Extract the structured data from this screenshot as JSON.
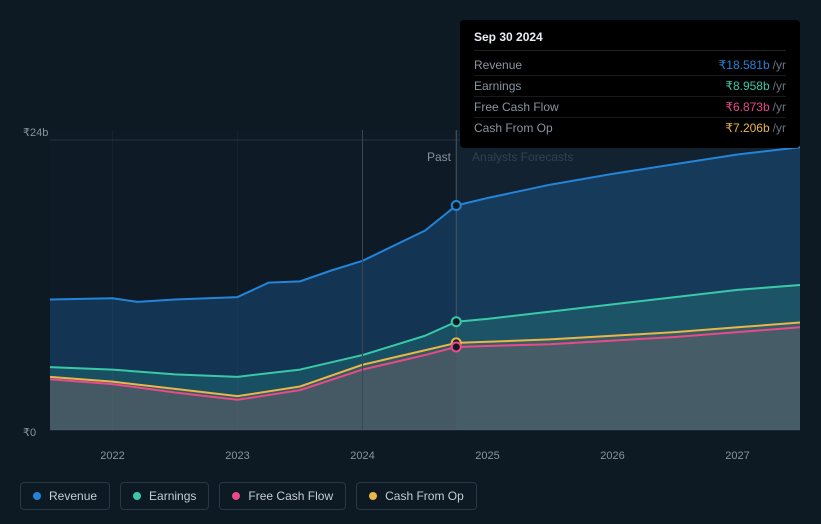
{
  "chart": {
    "type": "area",
    "background": "#0d1923",
    "grid_color": "#1a2633",
    "ylim": [
      0,
      24
    ],
    "ylabels": [
      {
        "value": 0,
        "text": "₹0"
      },
      {
        "value": 24,
        "text": "₹24b"
      }
    ],
    "xlim": [
      2021.5,
      2027.5
    ],
    "xticks": [
      2022,
      2023,
      2024,
      2025,
      2026,
      2027
    ],
    "split": {
      "x": 2024.75,
      "past_label": "Past",
      "forecast_label": "Analysts Forecasts"
    },
    "series": [
      {
        "name": "Revenue",
        "color": "#2384d8",
        "fill_opacity": 0.25,
        "points": [
          [
            2021.5,
            10.8
          ],
          [
            2022.0,
            10.9
          ],
          [
            2022.2,
            10.6
          ],
          [
            2022.5,
            10.8
          ],
          [
            2023.0,
            11.0
          ],
          [
            2023.25,
            12.2
          ],
          [
            2023.5,
            12.3
          ],
          [
            2023.75,
            13.2
          ],
          [
            2024.0,
            14.0
          ],
          [
            2024.5,
            16.5
          ],
          [
            2024.75,
            18.581
          ],
          [
            2025.0,
            19.2
          ],
          [
            2025.5,
            20.3
          ],
          [
            2026.0,
            21.2
          ],
          [
            2026.5,
            22.0
          ],
          [
            2027.0,
            22.8
          ],
          [
            2027.5,
            23.4
          ]
        ]
      },
      {
        "name": "Earnings",
        "color": "#3ac9a8",
        "fill_opacity": 0.18,
        "points": [
          [
            2021.5,
            5.2
          ],
          [
            2022.0,
            5.0
          ],
          [
            2022.5,
            4.6
          ],
          [
            2023.0,
            4.4
          ],
          [
            2023.5,
            5.0
          ],
          [
            2024.0,
            6.2
          ],
          [
            2024.5,
            7.8
          ],
          [
            2024.75,
            8.958
          ],
          [
            2025.0,
            9.2
          ],
          [
            2025.5,
            9.8
          ],
          [
            2026.0,
            10.4
          ],
          [
            2026.5,
            11.0
          ],
          [
            2027.0,
            11.6
          ],
          [
            2027.5,
            12.0
          ]
        ]
      },
      {
        "name": "Cash From Op",
        "color": "#eab54a",
        "fill_opacity": 0.12,
        "points": [
          [
            2021.5,
            4.4
          ],
          [
            2022.0,
            4.0
          ],
          [
            2022.5,
            3.4
          ],
          [
            2023.0,
            2.8
          ],
          [
            2023.5,
            3.6
          ],
          [
            2024.0,
            5.4
          ],
          [
            2024.5,
            6.6
          ],
          [
            2024.75,
            7.206
          ],
          [
            2025.0,
            7.3
          ],
          [
            2025.5,
            7.5
          ],
          [
            2026.0,
            7.8
          ],
          [
            2026.5,
            8.1
          ],
          [
            2027.0,
            8.5
          ],
          [
            2027.5,
            8.9
          ]
        ]
      },
      {
        "name": "Free Cash Flow",
        "color": "#e84a8a",
        "fill_opacity": 0.1,
        "points": [
          [
            2021.5,
            4.2
          ],
          [
            2022.0,
            3.8
          ],
          [
            2022.5,
            3.1
          ],
          [
            2023.0,
            2.5
          ],
          [
            2023.5,
            3.3
          ],
          [
            2024.0,
            5.0
          ],
          [
            2024.5,
            6.2
          ],
          [
            2024.75,
            6.873
          ],
          [
            2025.0,
            6.95
          ],
          [
            2025.5,
            7.1
          ],
          [
            2026.0,
            7.4
          ],
          [
            2026.5,
            7.7
          ],
          [
            2027.0,
            8.1
          ],
          [
            2027.5,
            8.5
          ]
        ]
      }
    ],
    "hover": {
      "x": 2024.75,
      "marker_radius": 4.5,
      "marker_inner": "#0d1923"
    }
  },
  "tooltip": {
    "date": "Sep 30 2024",
    "unit": "/yr",
    "rows": [
      {
        "label": "Revenue",
        "value": "₹18.581b",
        "color": "#2384d8"
      },
      {
        "label": "Earnings",
        "value": "₹8.958b",
        "color": "#3ac9a8"
      },
      {
        "label": "Free Cash Flow",
        "value": "₹6.873b",
        "color": "#e84a8a"
      },
      {
        "label": "Cash From Op",
        "value": "₹7.206b",
        "color": "#eab54a"
      }
    ]
  },
  "legend": {
    "items": [
      {
        "label": "Revenue",
        "color": "#2384d8"
      },
      {
        "label": "Earnings",
        "color": "#3ac9a8"
      },
      {
        "label": "Free Cash Flow",
        "color": "#e84a8a"
      },
      {
        "label": "Cash From Op",
        "color": "#eab54a"
      }
    ]
  }
}
